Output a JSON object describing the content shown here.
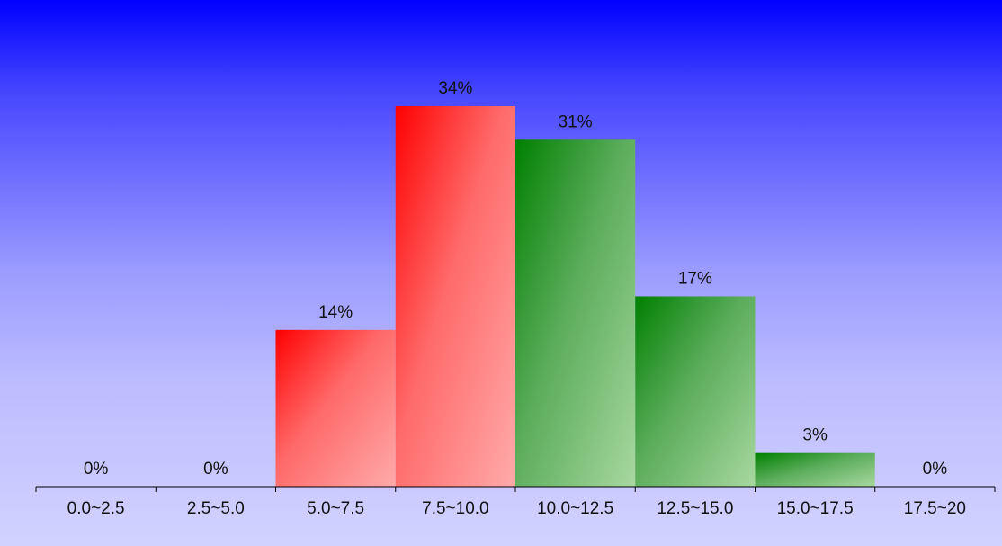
{
  "chart_data": {
    "type": "bar",
    "categories": [
      "0.0~2.5",
      "2.5~5.0",
      "5.0~7.5",
      "7.5~10.0",
      "10.0~12.5",
      "12.5~15.0",
      "15.0~17.5",
      "17.5~20"
    ],
    "values": [
      0,
      0,
      14,
      34,
      31,
      17,
      3,
      0
    ],
    "data_labels": [
      "0%",
      "0%",
      "14%",
      "34%",
      "31%",
      "17%",
      "3%",
      "0%"
    ],
    "ylim": [
      0,
      34
    ],
    "colors": [
      "#ff0000",
      "#ff0000",
      "#ff0000",
      "#ff0000",
      "#008000",
      "#008000",
      "#008000",
      "#008000"
    ],
    "grid": false,
    "legend": "none"
  }
}
